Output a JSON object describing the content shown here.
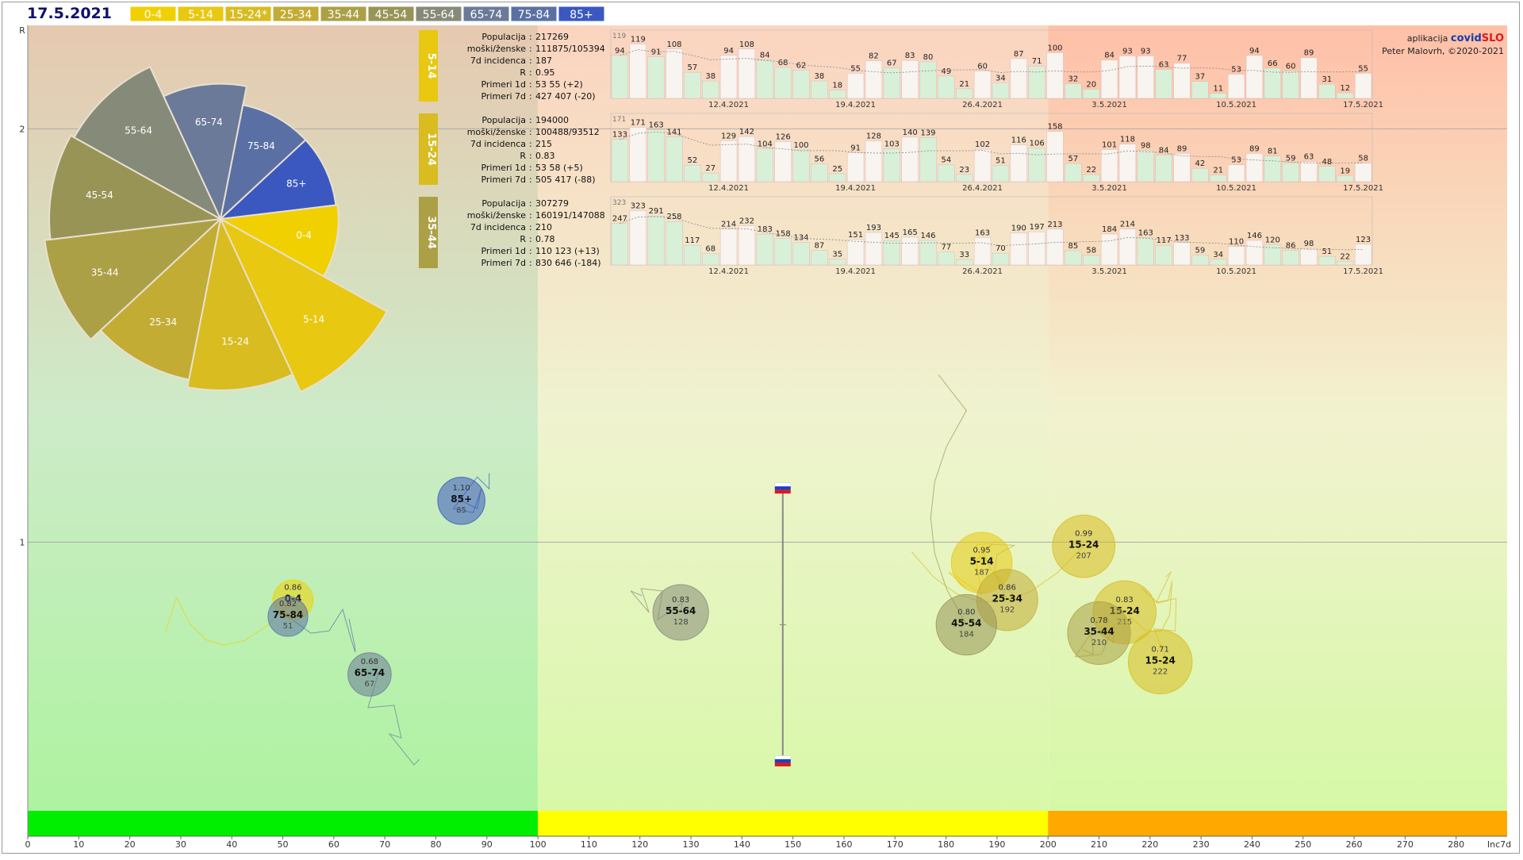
{
  "header": {
    "date": "17.5.2021",
    "age_buttons": [
      {
        "label": "0-4",
        "color": "#f0d000"
      },
      {
        "label": "5-14",
        "color": "#e8c810"
      },
      {
        "label": "15-24*",
        "color": "#d8bc20"
      },
      {
        "label": "25-34",
        "color": "#c2ac34"
      },
      {
        "label": "35-44",
        "color": "#aca046"
      },
      {
        "label": "45-54",
        "color": "#989456"
      },
      {
        "label": "55-64",
        "color": "#868a78"
      },
      {
        "label": "65-74",
        "color": "#6a7a98"
      },
      {
        "label": "75-84",
        "color": "#5a70a4"
      },
      {
        "label": "85+",
        "color": "#3a58c0"
      }
    ]
  },
  "credits": {
    "line1_prefix": "aplikacija ",
    "brand_a": "covid",
    "brand_b": "SLO",
    "line2": "Peter Malovrh, ©2020-2021",
    "brand_a_color": "#1a3aa8",
    "brand_b_color": "#e01818"
  },
  "colors": {
    "zone_green": "#00ee00",
    "zone_yellow": "#ffff00",
    "zone_orange": "#ffa800",
    "r_line": "#a0a0a0"
  },
  "chart_data": [
    {
      "type": "scatter",
      "title": "",
      "xlabel": "Inc7d",
      "ylabel": "R",
      "xlim": [
        0,
        290
      ],
      "ylim": [
        0.35,
        2.25
      ],
      "x_ticks": [
        0,
        10,
        20,
        30,
        40,
        50,
        60,
        70,
        80,
        90,
        100,
        110,
        120,
        130,
        140,
        150,
        160,
        170,
        180,
        190,
        200,
        210,
        220,
        230,
        240,
        250,
        260,
        270,
        280
      ],
      "x_last_tick_label": "Inc7d",
      "y_ticks": [
        1,
        2
      ],
      "y_axis_label": "R",
      "zones": [
        {
          "from": 0,
          "to": 100,
          "color": "green"
        },
        {
          "from": 100,
          "to": 200,
          "color": "yellow"
        },
        {
          "from": 200,
          "to": 290,
          "color": "orange"
        }
      ],
      "bubbles": [
        {
          "group": "0-4",
          "r": 0.86,
          "inc": 52,
          "label": "0-4",
          "r_label": "0.86",
          "inc_label": "",
          "color": "#f0d000"
        },
        {
          "group": "75-84",
          "r": 0.82,
          "inc": 51,
          "label": "75-84",
          "r_label": "0.82",
          "inc_label": "51",
          "color": "#5a70a4"
        },
        {
          "group": "85+",
          "r": 1.1,
          "inc": 85,
          "label": "85+",
          "r_label": "1.10",
          "inc_label": "85",
          "color": "#3a58c0"
        },
        {
          "group": "65-74",
          "r": 0.68,
          "inc": 67,
          "label": "65-74",
          "r_label": "0.68",
          "inc_label": "67",
          "color": "#6a7a98"
        },
        {
          "group": "55-64",
          "r": 0.83,
          "inc": 128,
          "label": "55-64",
          "r_label": "0.83",
          "inc_label": "128",
          "color": "#868a78"
        },
        {
          "group": "5-14",
          "r": 0.95,
          "inc": 187,
          "label": "5-14",
          "r_label": "0.95",
          "inc_label": "187",
          "color": "#e8c810"
        },
        {
          "group": "25-34",
          "r": 0.86,
          "inc": 192,
          "label": "25-34",
          "r_label": "0.86",
          "inc_label": "192",
          "color": "#c2ac34"
        },
        {
          "group": "45-54",
          "r": 0.8,
          "inc": 184,
          "label": "45-54",
          "r_label": "0.80",
          "inc_label": "184",
          "color": "#989456"
        },
        {
          "group": "15-24",
          "r": 0.99,
          "inc": 207,
          "label": "15-24",
          "r_label": "0.99",
          "inc_label": "207",
          "color": "#d8bc20"
        },
        {
          "group": "15-24",
          "r": 0.83,
          "inc": 215,
          "label": "15-24",
          "r_label": "0.83",
          "inc_label": "215",
          "color": "#d8bc20"
        },
        {
          "group": "35-44",
          "r": 0.78,
          "inc": 210,
          "label": "35-44",
          "r_label": "0.78",
          "inc_label": "210",
          "color": "#aca046"
        },
        {
          "group": "15-24",
          "r": 0.71,
          "inc": 222,
          "label": "15-24",
          "r_label": "0.71",
          "inc_label": "222",
          "color": "#d8bc20"
        }
      ],
      "slovenia_range": {
        "inc": 148,
        "r_top": 1.13,
        "r_bottom": 0.47
      }
    },
    {
      "type": "pie",
      "title": "",
      "slices": [
        {
          "label": "0-4",
          "value": 0.62,
          "color": "#f0d000"
        },
        {
          "label": "5-14",
          "value": 1.0,
          "color": "#e8c810"
        },
        {
          "label": "15-24",
          "value": 0.9,
          "color": "#d8bc20"
        },
        {
          "label": "25-34",
          "value": 0.86,
          "color": "#c2ac34"
        },
        {
          "label": "35-44",
          "value": 0.93,
          "color": "#aca046"
        },
        {
          "label": "45-54",
          "value": 0.9,
          "color": "#989456"
        },
        {
          "label": "55-64",
          "value": 0.88,
          "color": "#868a78"
        },
        {
          "label": "65-74",
          "value": 0.71,
          "color": "#6a7a98"
        },
        {
          "label": "75-84",
          "value": 0.61,
          "color": "#5a70a4"
        },
        {
          "label": "85+",
          "value": 0.61,
          "color": "#3a58c0"
        }
      ]
    },
    {
      "type": "bar",
      "group": "5-14",
      "info": {
        "populacija": "217269",
        "moski_zenske": "111875/105394",
        "incidenca7d": "187",
        "r": "0.95",
        "primeri1d": "53 55 (+2)",
        "primeri7d": "427 407 (-20)"
      },
      "values": [
        94,
        119,
        91,
        108,
        57,
        38,
        94,
        108,
        84,
        68,
        62,
        38,
        18,
        55,
        82,
        67,
        83,
        80,
        49,
        21,
        60,
        34,
        87,
        71,
        100,
        32,
        20,
        84,
        93,
        93,
        63,
        77,
        37,
        11,
        53,
        94,
        66,
        60,
        89,
        31,
        12,
        55
      ],
      "prev_first": 119,
      "date_ticks": [
        "12.4.2021",
        "19.4.2021",
        "26.4.2021",
        "3.5.2021",
        "10.5.2021",
        "17.5.2021"
      ]
    },
    {
      "type": "bar",
      "group": "15-24",
      "info": {
        "populacija": "194000",
        "moski_zenske": "100488/93512",
        "incidenca7d": "215",
        "r": "0.83",
        "primeri1d": "53 58 (+5)",
        "primeri7d": "505 417 (-88)"
      },
      "values": [
        133,
        171,
        163,
        141,
        52,
        27,
        129,
        142,
        104,
        126,
        100,
        56,
        25,
        91,
        128,
        103,
        140,
        139,
        54,
        23,
        102,
        51,
        116,
        106,
        158,
        57,
        22,
        101,
        118,
        98,
        84,
        89,
        42,
        21,
        53,
        89,
        81,
        59,
        63,
        48,
        19,
        58
      ],
      "prev_first": 171,
      "date_ticks": [
        "12.4.2021",
        "19.4.2021",
        "26.4.2021",
        "3.5.2021",
        "10.5.2021",
        "17.5.2021"
      ]
    },
    {
      "type": "bar",
      "group": "35-44",
      "info": {
        "populacija": "307279",
        "moski_zenske": "160191/147088",
        "incidenca7d": "210",
        "r": "0.78",
        "primeri1d": "110 123 (+13)",
        "primeri7d": "830 646 (-184)"
      },
      "values": [
        247,
        323,
        291,
        258,
        117,
        68,
        214,
        232,
        183,
        158,
        134,
        87,
        35,
        151,
        193,
        145,
        165,
        146,
        77,
        33,
        163,
        70,
        190,
        197,
        213,
        85,
        58,
        184,
        214,
        163,
        117,
        133,
        59,
        34,
        110,
        146,
        120,
        86,
        98,
        51,
        22,
        123
      ],
      "prev_first": 323,
      "date_ticks": [
        "12.4.2021",
        "19.4.2021",
        "26.4.2021",
        "3.5.2021",
        "10.5.2021",
        "17.5.2021"
      ]
    }
  ],
  "info_labels": {
    "populacija": "Populacija",
    "moski_zenske": "moški/ženske",
    "incidenca7d": "7d incidenca",
    "r": "R",
    "primeri1d": "Primeri 1d",
    "primeri7d": "Primeri 7d"
  }
}
